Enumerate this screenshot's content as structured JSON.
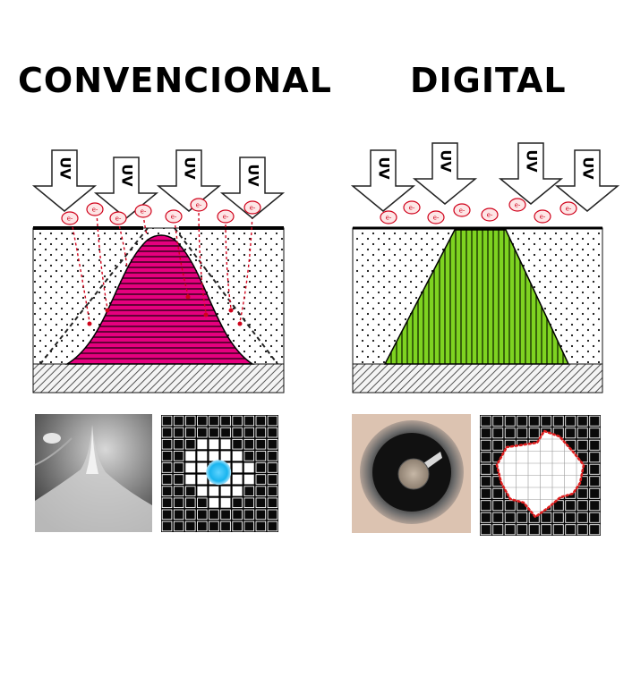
{
  "titles": {
    "conventional": "CONVENCIONAL",
    "digital": "DIGITAL"
  },
  "arrow_label": "UV",
  "emission_label": "e-",
  "colors": {
    "conventional_dot": "#e5007e",
    "digital_dot": "#7ed321",
    "electron": "#d0021b",
    "pixel_highlight": "#19b5ef"
  },
  "icons": {
    "uv_arrow": "down-arrow-icon",
    "electron": "electron-icon"
  }
}
